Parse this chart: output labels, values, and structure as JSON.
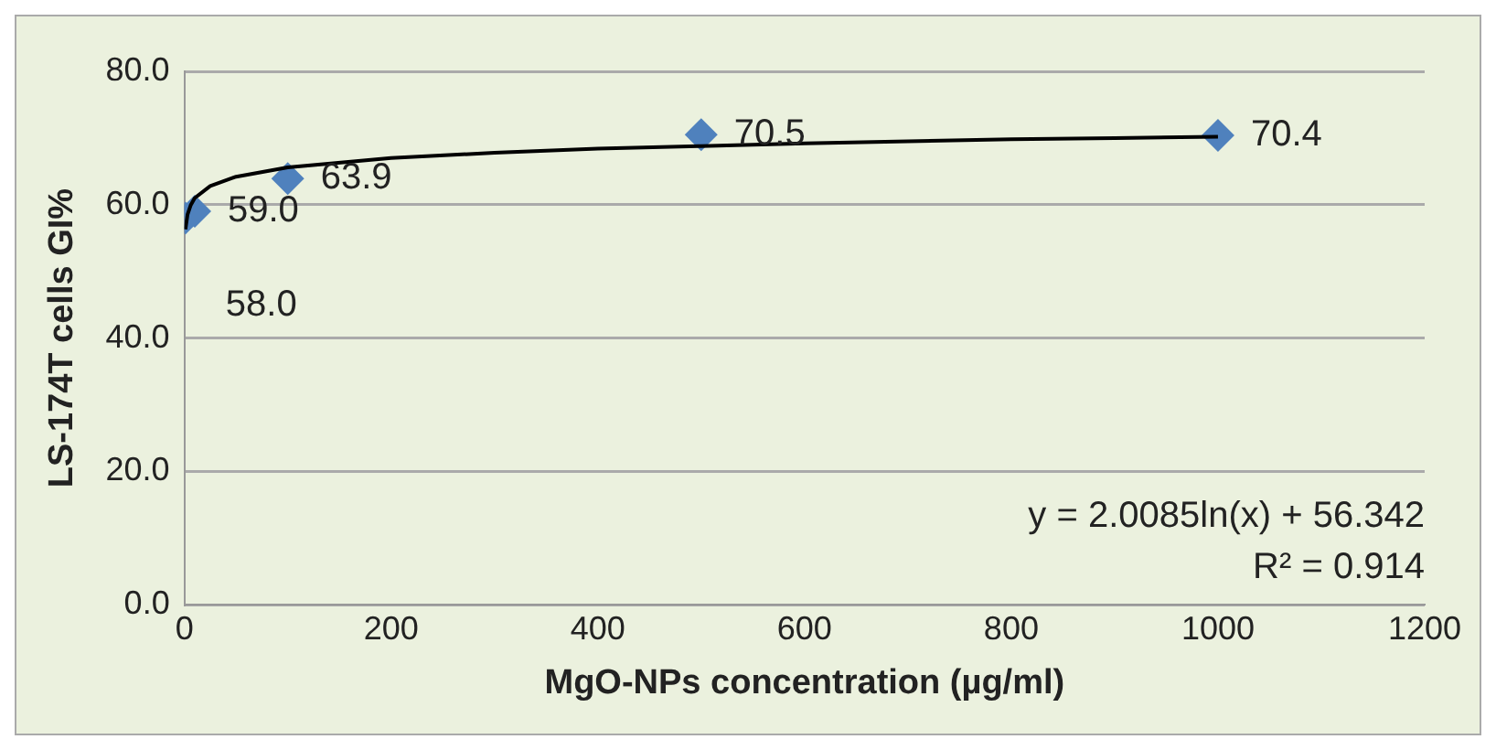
{
  "chart_data": {
    "type": "scatter",
    "xlabel": "MgO-NPs concentration (µg/ml)",
    "ylabel": "LS-174T cells GI%",
    "xlim": [
      0,
      1200
    ],
    "xticks": [
      0,
      200,
      400,
      600,
      800,
      1000,
      1200
    ],
    "ylim": [
      0,
      80
    ],
    "yticks": [
      {
        "value": 0,
        "label": "0.0"
      },
      {
        "value": 20,
        "label": "20.0"
      },
      {
        "value": 40,
        "label": "40.0"
      },
      {
        "value": 60,
        "label": "60.0"
      },
      {
        "value": 80,
        "label": "80.0"
      }
    ],
    "grid": "y",
    "marker": "diamond",
    "series": [
      {
        "color": "#4f81bd",
        "x": [
          1,
          10,
          100,
          500,
          1000
        ],
        "values": [
          58.0,
          59.0,
          63.9,
          70.5,
          70.4
        ],
        "value_labels": [
          "58.0",
          "59.0",
          "63.9",
          "70.5",
          "70.4"
        ]
      },
      {
        "type": "line",
        "color": "#000000",
        "marker": "none",
        "x": [
          1,
          3,
          6,
          10,
          25,
          50,
          100,
          200,
          300,
          400,
          500,
          600,
          700,
          800,
          900,
          1000
        ],
        "values": [
          56.3,
          58.5,
          59.9,
          61.0,
          62.8,
          64.2,
          65.6,
          67.0,
          67.8,
          68.4,
          68.8,
          69.2,
          69.5,
          69.8,
          70.0,
          70.2
        ]
      }
    ],
    "annotations": [
      "y = 2.0085ln(x) + 56.342",
      "R² = 0.914"
    ]
  }
}
